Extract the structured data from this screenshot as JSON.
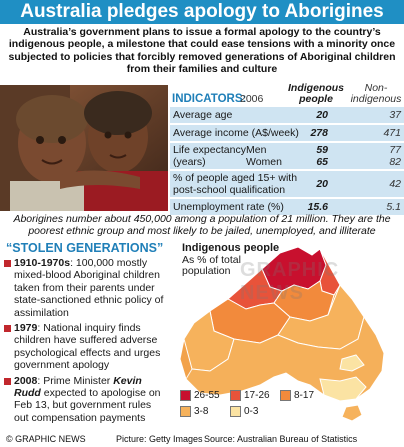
{
  "headline": "Australia pledges apology to Aborigines",
  "intro": "Australia’s government plans to issue a formal apology to the country’s indigenous people, a milestone that could ease tensions with a minority once subjected to policies that forcibly removed generations of Aboriginal children from their families and culture",
  "indicators": {
    "title": "INDICATORS:",
    "year": "2006",
    "col_indigenous": "Indigenous people",
    "col_non": "Non-indigenous",
    "rows": [
      {
        "label": "Average age",
        "indigenous": "20",
        "non": "37"
      },
      {
        "label": "Average income (A$/week)",
        "indigenous": "278",
        "non": "471"
      },
      {
        "label": "Life expectancy (years)",
        "sub1": "Men",
        "sub2": "Women",
        "indigenous1": "59",
        "non1": "77",
        "indigenous2": "65",
        "non2": "82"
      },
      {
        "label": "% of people aged 15+ with post-school qualification",
        "indigenous": "20",
        "non": "42"
      },
      {
        "label": "Unemployment rate (%)",
        "indigenous": "15.6",
        "non": "5.1"
      }
    ]
  },
  "population_note": "Aborigines number about 450,000 among a population of 21 million. They are the poorest ethnic group and most likely to be jailed, unemployed, and illiterate",
  "stolen": {
    "title": "“STOLEN GENERATIONS”",
    "events": [
      {
        "year": "1910-1970s",
        "text": ": 100,000 mostly mixed-blood Aboriginal children taken from their parents under state-sanctioned ethnic policy of assimilation"
      },
      {
        "year": "1979",
        "text": ": National inquiry finds children have suffered adverse psychological effects and urges government apology"
      },
      {
        "year": "2008",
        "pre": ": Prime Minister ",
        "name": "Kevin Rudd",
        "text": " expected to apologise on Feb 13, but government rules out compensation payments"
      }
    ]
  },
  "map": {
    "title": "Indigenous people",
    "subtitle": "As % of total population",
    "watermark": "GRAPHIC NEWS",
    "legend": [
      {
        "label": "26-55",
        "color": "#c8102e"
      },
      {
        "label": "17-26",
        "color": "#e8533a"
      },
      {
        "label": "8-17",
        "color": "#f28a3c"
      },
      {
        "label": "3-8",
        "color": "#f6b25c"
      },
      {
        "label": "0-3",
        "color": "#fbe3a3"
      }
    ]
  },
  "footer": {
    "credit": "© GRAPHIC NEWS",
    "picture": "Picture: Getty Images",
    "source": "Source: Australian Bureau of Statistics"
  }
}
